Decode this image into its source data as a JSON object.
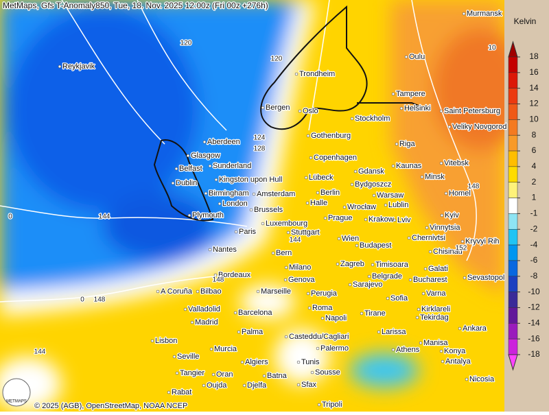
{
  "header": {
    "title": "MetMaps, Gfs T-Anomaly850, Tue, 18. Nov. 2025 12:00z (Fri 00z +276h)"
  },
  "legend": {
    "title": "Kelvin",
    "ticks": [
      18,
      16,
      14,
      12,
      10,
      8,
      6,
      4,
      2,
      1,
      -1,
      -2,
      -4,
      -6,
      -8,
      -10,
      -12,
      -14,
      -16,
      -18
    ],
    "colors": [
      "#a00000",
      "#c40000",
      "#dc1808",
      "#ec3a10",
      "#f05a18",
      "#f47a20",
      "#f89a28",
      "#ffbe00",
      "#ffdc00",
      "#fff27a",
      "#ffffff",
      "#8ee4f4",
      "#20c4f4",
      "#0096f0",
      "#0868e0",
      "#1c40c0",
      "#3a2a98",
      "#62189a",
      "#9a1cbc",
      "#cc22dc",
      "#ff44ff"
    ]
  },
  "cities": [
    "Murmansk",
    "Reykjavik",
    "Oulu",
    "Trondheim",
    "Tampere",
    "Bergen",
    "Oslo",
    "Helsinki",
    "Saint Petersburg",
    "Stockholm",
    "Veliky Novgorod",
    "Aberdeen",
    "Gothenburg",
    "Riga",
    "Glasgow",
    "Copenhagen",
    "Vitebsk",
    "Belfast",
    "Sunderland",
    "Gdansk",
    "Kaunas",
    "Dublin",
    "Kingston upon Hull",
    "Lübeck",
    "Bydgoszcz",
    "Minsk",
    "Birmingham",
    "Amsterdam",
    "Berlin",
    "Warsaw",
    "Homel",
    "London",
    "Halle",
    "Wrocław",
    "Lublin",
    "Brussels",
    "Plymouth",
    "Prague",
    "Krakow",
    "Lviv",
    "Kyiv",
    "Luxembourg",
    "Stuttgart",
    "Vinnytsia",
    "Paris",
    "Chernivtsi",
    "Kryvyi Rih",
    "Wien",
    "Budapest",
    "Chisinau",
    "Nantes",
    "Bern",
    "Milano",
    "Zagreb",
    "Timisoara",
    "Galati",
    "Bordeaux",
    "Genova",
    "Belgrade",
    "Bucharest",
    "Sevastopol",
    "Sarajevo",
    "A Coruña",
    "Bilbao",
    "Marseille",
    "Perugia",
    "Varna",
    "Sofia",
    "Roma",
    "Valladolid",
    "Kirklareli",
    "Barcelona",
    "Madrid",
    "Napoli",
    "Tirane",
    "Tekirdag",
    "Ankara",
    "Larissa",
    "Palma",
    "Lisbon",
    "Casteddu/Cagliari",
    "Palermo",
    "Manisa",
    "Murcia",
    "Athens",
    "Konya",
    "Seville",
    "Algiers",
    "Tunis",
    "Antalya",
    "Tangier",
    "Oran",
    "Batna",
    "Sousse",
    "Nicosia",
    "Oujda",
    "Djelfa",
    "Sfax",
    "Rabat",
    "Tripoli"
  ],
  "contour_labels": [
    120,
    120,
    124,
    128,
    144,
    0,
    148,
    148,
    148,
    0,
    144,
    10,
    144,
    152
  ],
  "footer": {
    "credit": "© 2025 (AGB), OpenStreetMap, NOAA NCEP",
    "logo": "METMAPS"
  }
}
